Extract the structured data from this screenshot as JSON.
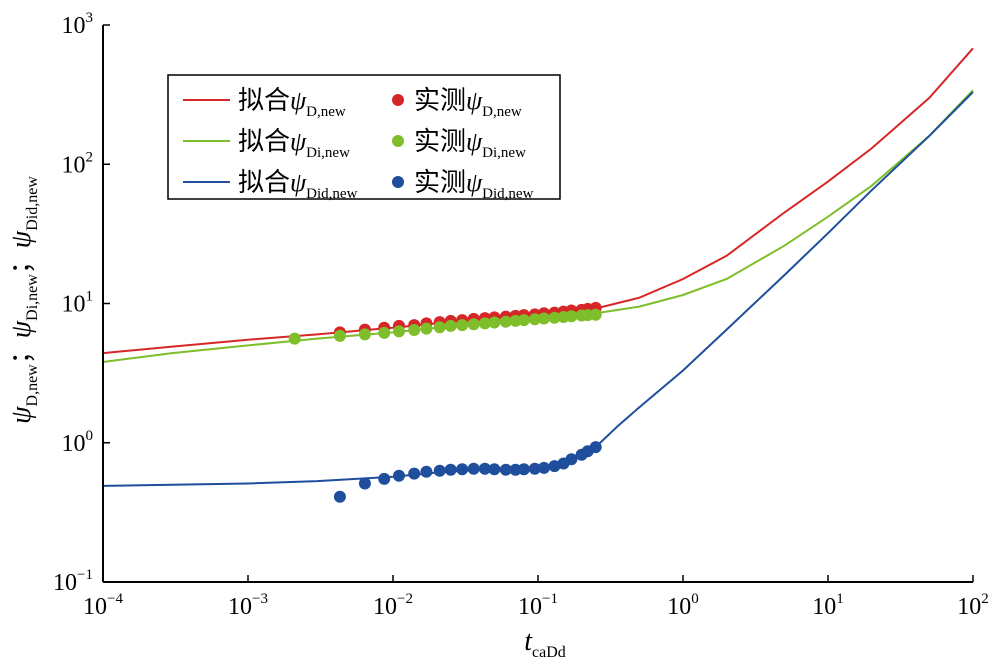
{
  "chart_data": {
    "type": "line",
    "xscale": "log",
    "yscale": "log",
    "xlim": [
      0.0001,
      100
    ],
    "ylim": [
      0.1,
      1000
    ],
    "x_ticks": [
      {
        "base": "10",
        "exp": "−4",
        "value": 0.0001
      },
      {
        "base": "10",
        "exp": "−3",
        "value": 0.001
      },
      {
        "base": "10",
        "exp": "−2",
        "value": 0.01
      },
      {
        "base": "10",
        "exp": "−1",
        "value": 0.1
      },
      {
        "base": "10",
        "exp": "0",
        "value": 1
      },
      {
        "base": "10",
        "exp": "1",
        "value": 10
      },
      {
        "base": "10",
        "exp": "2",
        "value": 100
      }
    ],
    "y_ticks": [
      {
        "base": "10",
        "exp": "−1",
        "value": 0.1
      },
      {
        "base": "10",
        "exp": "0",
        "value": 1
      },
      {
        "base": "10",
        "exp": "1",
        "value": 10
      },
      {
        "base": "10",
        "exp": "2",
        "value": 100
      },
      {
        "base": "10",
        "exp": "3",
        "value": 1000
      }
    ],
    "xlabel": {
      "var": "t",
      "sub": "caDd"
    },
    "ylabel": [
      {
        "var": "ψ",
        "sub": "D,new"
      },
      {
        "sep": "；"
      },
      {
        "var": "ψ",
        "sub": "Di,new"
      },
      {
        "sep": "；"
      },
      {
        "var": "ψ",
        "sub": "Did,new"
      }
    ],
    "legend_position": "top-left",
    "grid": false,
    "series": [
      {
        "kind": "line",
        "name": {
          "text": "拟合",
          "var": "ψ",
          "sub": "D,new"
        },
        "color": "#d62728",
        "x": [
          0.0001,
          0.0003,
          0.001,
          0.003,
          0.01,
          0.03,
          0.1,
          0.25,
          0.5,
          1,
          2,
          5,
          10,
          20,
          50,
          100
        ],
        "y": [
          4.4,
          4.9,
          5.5,
          6.0,
          6.7,
          7.5,
          8.4,
          9.2,
          11.0,
          15.0,
          22.0,
          45.0,
          75.0,
          130.0,
          300.0,
          680.0
        ]
      },
      {
        "kind": "scatter",
        "name": {
          "text": "实测",
          "var": "ψ",
          "sub": "D,new"
        },
        "color": "#d62728",
        "x": [
          0.0043,
          0.0064,
          0.0087,
          0.011,
          0.014,
          0.017,
          0.021,
          0.025,
          0.03,
          0.036,
          0.043,
          0.05,
          0.06,
          0.07,
          0.08,
          0.095,
          0.11,
          0.13,
          0.15,
          0.17,
          0.2,
          0.22,
          0.25
        ],
        "y": [
          6.2,
          6.5,
          6.7,
          6.9,
          7.0,
          7.2,
          7.35,
          7.5,
          7.6,
          7.75,
          7.85,
          7.95,
          8.05,
          8.15,
          8.25,
          8.35,
          8.5,
          8.6,
          8.75,
          8.9,
          9.0,
          9.15,
          9.3
        ]
      },
      {
        "kind": "line",
        "name": {
          "text": "拟合",
          "var": "ψ",
          "sub": "Di,new"
        },
        "color": "#7ebe2a",
        "x": [
          0.0001,
          0.0003,
          0.001,
          0.003,
          0.01,
          0.03,
          0.1,
          0.25,
          0.5,
          1,
          2,
          5,
          10,
          20,
          50,
          100
        ],
        "y": [
          3.8,
          4.4,
          5.0,
          5.6,
          6.2,
          7.0,
          7.8,
          8.5,
          9.5,
          11.5,
          15.0,
          26.0,
          42.0,
          70.0,
          160.0,
          340.0
        ]
      },
      {
        "kind": "scatter",
        "name": {
          "text": "实测",
          "var": "ψ",
          "sub": "Di,new"
        },
        "color": "#7ebe2a",
        "x": [
          0.0021,
          0.0043,
          0.0064,
          0.0087,
          0.011,
          0.014,
          0.017,
          0.021,
          0.025,
          0.03,
          0.036,
          0.043,
          0.05,
          0.06,
          0.07,
          0.08,
          0.095,
          0.11,
          0.13,
          0.15,
          0.17,
          0.2,
          0.22,
          0.25
        ],
        "y": [
          5.6,
          5.85,
          6.0,
          6.15,
          6.3,
          6.45,
          6.6,
          6.75,
          6.9,
          7.0,
          7.1,
          7.2,
          7.3,
          7.4,
          7.5,
          7.6,
          7.7,
          7.8,
          7.9,
          8.0,
          8.1,
          8.2,
          8.25,
          8.3
        ]
      },
      {
        "kind": "line",
        "name": {
          "text": "拟合",
          "var": "ψ",
          "sub": "Did,new"
        },
        "color": "#1f4e9c",
        "x": [
          0.0001,
          0.0003,
          0.001,
          0.003,
          0.01,
          0.02,
          0.03,
          0.05,
          0.08,
          0.1,
          0.15,
          0.2,
          0.25,
          0.35,
          0.5,
          1,
          2,
          5,
          10,
          20,
          50,
          100
        ],
        "y": [
          0.49,
          0.5,
          0.51,
          0.53,
          0.57,
          0.61,
          0.63,
          0.64,
          0.645,
          0.65,
          0.7,
          0.8,
          0.93,
          1.3,
          1.8,
          3.3,
          6.5,
          16.0,
          32.0,
          65.0,
          160.0,
          330.0
        ]
      },
      {
        "kind": "scatter",
        "name": {
          "text": "实测",
          "var": "ψ",
          "sub": "Did,new"
        },
        "color": "#1f4e9c",
        "x": [
          0.0043,
          0.0064,
          0.0087,
          0.011,
          0.014,
          0.017,
          0.021,
          0.025,
          0.03,
          0.036,
          0.043,
          0.05,
          0.06,
          0.07,
          0.08,
          0.095,
          0.11,
          0.13,
          0.15,
          0.17,
          0.2,
          0.22,
          0.25
        ],
        "y": [
          0.41,
          0.51,
          0.55,
          0.58,
          0.6,
          0.62,
          0.63,
          0.64,
          0.645,
          0.65,
          0.65,
          0.645,
          0.64,
          0.64,
          0.645,
          0.65,
          0.66,
          0.68,
          0.71,
          0.76,
          0.82,
          0.87,
          0.93
        ]
      }
    ]
  }
}
